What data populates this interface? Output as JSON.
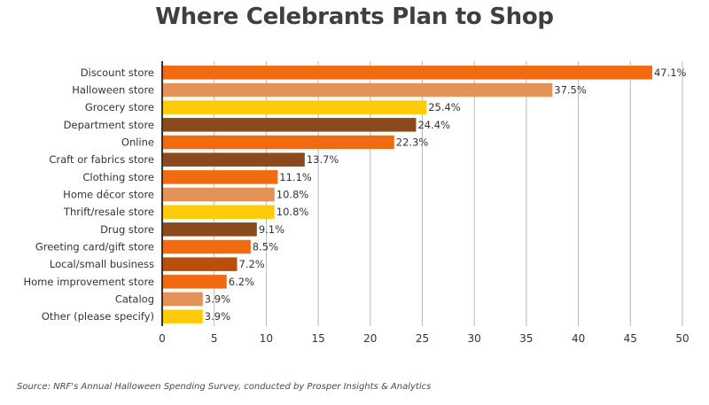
{
  "chart_data": {
    "type": "bar",
    "orientation": "horizontal",
    "title": "Where Celebrants Plan to Shop",
    "categories": [
      "Discount store",
      "Halloween store",
      "Grocery store",
      "Department store",
      "Online",
      "Craft or fabrics store",
      "Clothing store",
      "Home décor store",
      "Thrift/resale store",
      "Drug store",
      "Greeting card/gift store",
      "Local/small business",
      "Home improvement store",
      "Catalog",
      "Other (please specify)"
    ],
    "values": [
      47.1,
      37.5,
      25.4,
      24.4,
      22.3,
      13.7,
      11.1,
      10.8,
      10.8,
      9.1,
      8.5,
      7.2,
      6.2,
      3.9,
      3.9
    ],
    "value_labels": [
      "47.1%",
      "37.5%",
      "25.4%",
      "24.4%",
      "22.3%",
      "13.7%",
      "11.1%",
      "10.8%",
      "10.8%",
      "9.1%",
      "8.5%",
      "7.2%",
      "6.2%",
      "3.9%",
      "3.9%"
    ],
    "bar_colors": [
      "#f26a10",
      "#e39258",
      "#fdcb0a",
      "#8a4a1e",
      "#f26a10",
      "#8a4a1e",
      "#f26a10",
      "#e39258",
      "#fdcb0a",
      "#8a4a1e",
      "#f26a10",
      "#b8500c",
      "#f26a10",
      "#e39258",
      "#fdcb0a"
    ],
    "xticks": [
      "0",
      "5",
      "10",
      "15",
      "20",
      "25",
      "30",
      "35",
      "40",
      "45",
      "50"
    ],
    "xlim": [
      0,
      50
    ],
    "xlabel": "",
    "ylabel": "",
    "grid": "vertical",
    "gridline_color": "#b8b8b8",
    "axis_color": "#333333",
    "legend": "none",
    "source": "Source: NRF's Annual Halloween Spending Survey, conducted by Prosper Insights & Analytics"
  }
}
